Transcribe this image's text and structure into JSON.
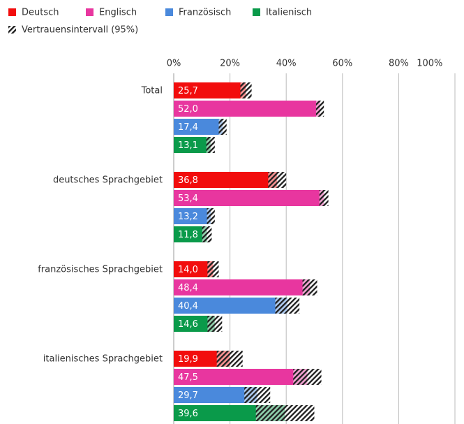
{
  "chart_data": {
    "type": "bar",
    "orientation": "horizontal",
    "categories": [
      "Total",
      "deutsches Sprachgebiet",
      "französisches Sprachgebiet",
      "italienisches Sprachgebiet"
    ],
    "series": [
      {
        "name": "Deutsch",
        "color": "#f20d0d",
        "values": [
          25.7,
          36.8,
          14.0,
          19.9
        ],
        "value_labels": [
          "25,7",
          "36,8",
          "14,0",
          "19,9"
        ],
        "errors": [
          2.0,
          3.2,
          2.0,
          4.6
        ]
      },
      {
        "name": "Englisch",
        "color": "#e8369f",
        "values": [
          52.0,
          53.4,
          48.4,
          47.5
        ],
        "value_labels": [
          "52,0",
          "53,4",
          "48,4",
          "47,5"
        ],
        "errors": [
          1.4,
          1.6,
          2.6,
          5.0
        ]
      },
      {
        "name": "Französisch",
        "color": "#4a89dc",
        "values": [
          17.4,
          13.2,
          40.4,
          29.7
        ],
        "value_labels": [
          "17,4",
          "13,2",
          "40,4",
          "29,7"
        ],
        "errors": [
          1.4,
          1.4,
          4.3,
          4.6
        ]
      },
      {
        "name": "Italienisch",
        "color": "#0a9a4a",
        "values": [
          13.1,
          11.8,
          14.6,
          39.6
        ],
        "value_labels": [
          "13,1",
          "11,8",
          "14,6",
          "39,6"
        ],
        "errors": [
          1.5,
          1.7,
          2.6,
          10.4
        ]
      }
    ],
    "ci_label": "Vertrauensintervall (95%)",
    "xlim": [
      0,
      100
    ],
    "xticks": [
      {
        "value": 0,
        "label": "0%"
      },
      {
        "value": 20,
        "label": "20%"
      },
      {
        "value": 40,
        "label": "40%"
      },
      {
        "value": 60,
        "label": "60%"
      },
      {
        "value": 80,
        "label": "80%"
      },
      {
        "value": 100,
        "label": "100%"
      }
    ],
    "grid": true,
    "legend": "top"
  }
}
